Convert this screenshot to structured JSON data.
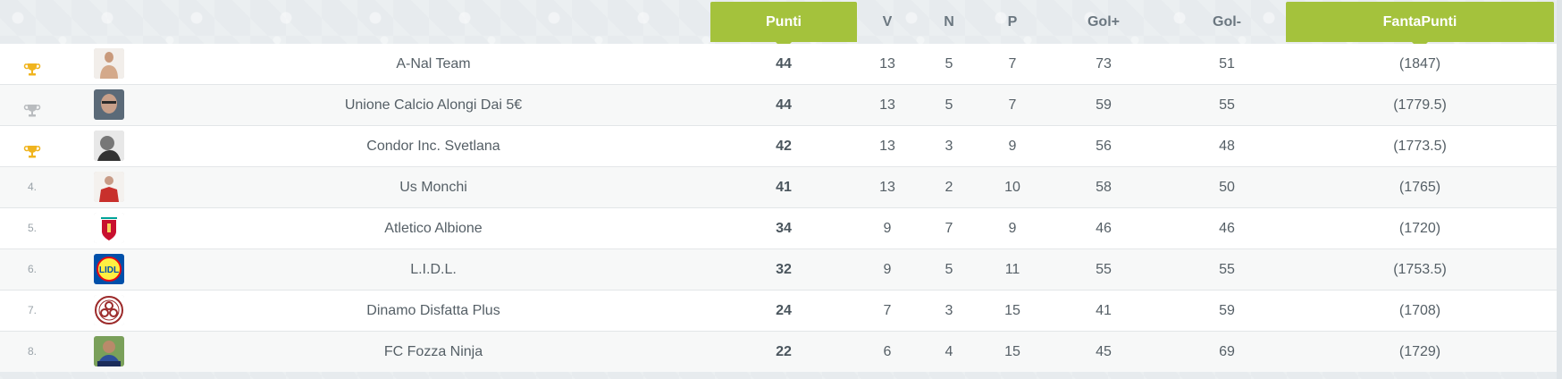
{
  "header": {
    "punti": "Punti",
    "v": "V",
    "n": "N",
    "p": "P",
    "gol_plus": "Gol+",
    "gol_minus": "Gol-",
    "fantapunti": "FantaPunti"
  },
  "colors": {
    "accent": "#a4c23c",
    "gold": "#f0b41e",
    "silver": "#b9bcbf"
  },
  "rows": [
    {
      "pos": "",
      "trophy": "gold-trophy-icon",
      "avatar": "shirtless-man-avatar",
      "team": "A-Nal Team",
      "punti": "44",
      "v": "13",
      "n": "5",
      "p": "7",
      "gol_plus": "73",
      "gol_minus": "51",
      "fantapunti": "(1847)"
    },
    {
      "pos": "",
      "trophy": "silver-trophy-icon",
      "avatar": "man-face-avatar",
      "team": "Unione Calcio Alongi Dai 5€",
      "punti": "44",
      "v": "13",
      "n": "5",
      "p": "7",
      "gol_plus": "59",
      "gol_minus": "55",
      "fantapunti": "(1779.5)"
    },
    {
      "pos": "",
      "trophy": "bronze-trophy-icon",
      "avatar": "bw-photo-avatar",
      "team": "Condor Inc. Svetlana",
      "punti": "42",
      "v": "13",
      "n": "3",
      "p": "9",
      "gol_plus": "56",
      "gol_minus": "48",
      "fantapunti": "(1773.5)"
    },
    {
      "pos": "4.",
      "trophy": "",
      "avatar": "red-jersey-avatar",
      "team": "Us Monchi",
      "punti": "41",
      "v": "13",
      "n": "2",
      "p": "10",
      "gol_plus": "58",
      "gol_minus": "50",
      "fantapunti": "(1765)"
    },
    {
      "pos": "5.",
      "trophy": "",
      "avatar": "liverpool-crest-avatar",
      "team": "Atletico Albione",
      "punti": "34",
      "v": "9",
      "n": "7",
      "p": "9",
      "gol_plus": "46",
      "gol_minus": "46",
      "fantapunti": "(1720)"
    },
    {
      "pos": "6.",
      "trophy": "",
      "avatar": "lidl-logo-avatar",
      "team": "L.I.D.L.",
      "punti": "32",
      "v": "9",
      "n": "5",
      "p": "11",
      "gol_plus": "55",
      "gol_minus": "55",
      "fantapunti": "(1753.5)"
    },
    {
      "pos": "7.",
      "trophy": "",
      "avatar": "biohazard-badge-avatar",
      "team": "Dinamo Disfatta Plus",
      "punti": "24",
      "v": "7",
      "n": "3",
      "p": "15",
      "gol_plus": "41",
      "gol_minus": "59",
      "fantapunti": "(1708)"
    },
    {
      "pos": "8.",
      "trophy": "",
      "avatar": "player-photo-avatar",
      "team": "FC Fozza Ninja",
      "punti": "22",
      "v": "6",
      "n": "4",
      "p": "15",
      "gol_plus": "45",
      "gol_minus": "69",
      "fantapunti": "(1729)"
    }
  ]
}
